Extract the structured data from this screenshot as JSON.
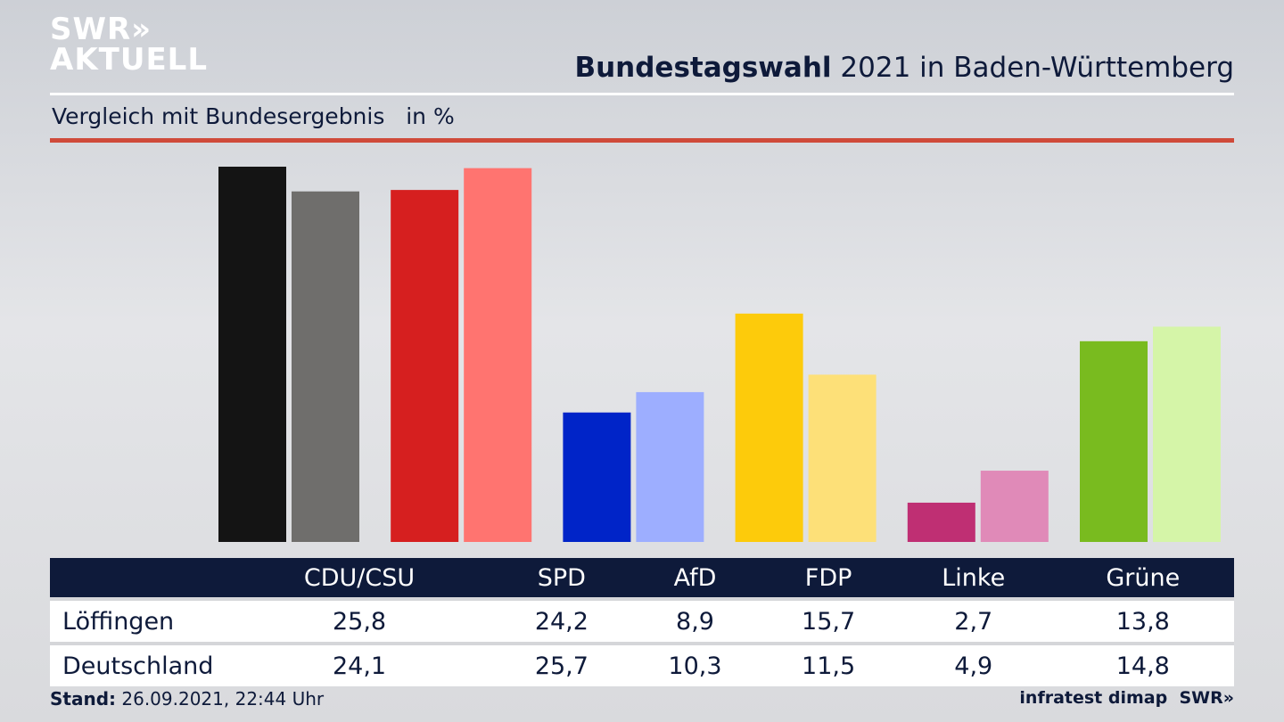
{
  "logo": {
    "line1": "SWR»",
    "line2": "AKTUELL"
  },
  "header": {
    "title_bold": "Bundestagswahl",
    "title_rest": " 2021 in Baden-Württemberg",
    "subtitle": "Vergleich mit Bundesergebnis   in %"
  },
  "chart_data": {
    "type": "bar",
    "title": "Bundestagswahl 2021 in Baden-Württemberg",
    "ylabel": "in %",
    "ylim": [
      0,
      25.8
    ],
    "categories": [
      "CDU/CSU",
      "SPD",
      "AfD",
      "FDP",
      "Linke",
      "Grüne"
    ],
    "series": [
      {
        "name": "Löffingen",
        "values": [
          "25,8",
          "24,2",
          "8,9",
          "15,7",
          "2,7",
          "13,8"
        ],
        "colors": [
          "#141414",
          "#d61f1f",
          "#0024c8",
          "#fdcb0b",
          "#bf2f73",
          "#79bb1f"
        ]
      },
      {
        "name": "Deutschland",
        "values": [
          "24,1",
          "25,7",
          "10,3",
          "11,5",
          "4,9",
          "14,8"
        ],
        "colors": [
          "#6f6e6c",
          "#ff7470",
          "#9daeff",
          "#fde078",
          "#e08ab8",
          "#d5f5a8"
        ]
      }
    ]
  },
  "footer": {
    "stand_label": "Stand:",
    "stand_value": " 26.09.2021, 22:44 Uhr",
    "source": "infratest dimap  SWR»"
  }
}
